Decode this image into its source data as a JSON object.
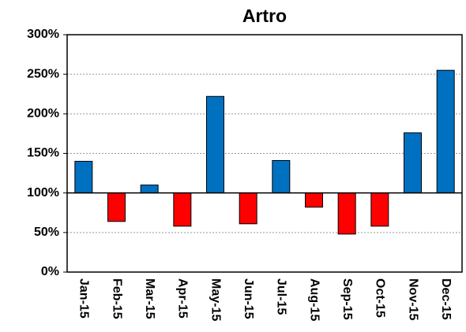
{
  "chart_data": {
    "type": "bar",
    "title": "Artro",
    "categories": [
      "Jan-15",
      "Feb-15",
      "Mar-15",
      "Apr-15",
      "May-15",
      "Jun-15",
      "Jul-15",
      "Aug-15",
      "Sep-15",
      "Oct-15",
      "Nov-15",
      "Dec-15"
    ],
    "values": [
      140,
      64,
      110,
      58,
      222,
      61,
      141,
      82,
      48,
      58,
      176,
      255
    ],
    "base": 100,
    "color_above": "#0070c0",
    "color_below": "#ff0000",
    "ylim": [
      0,
      300
    ],
    "yticks": [
      {
        "value": 0,
        "label": "0%"
      },
      {
        "value": 50,
        "label": "50%"
      },
      {
        "value": 100,
        "label": "100%"
      },
      {
        "value": 150,
        "label": "150%"
      },
      {
        "value": 200,
        "label": "200%"
      },
      {
        "value": 250,
        "label": "250%"
      },
      {
        "value": 300,
        "label": "300%"
      }
    ],
    "grid": true
  }
}
